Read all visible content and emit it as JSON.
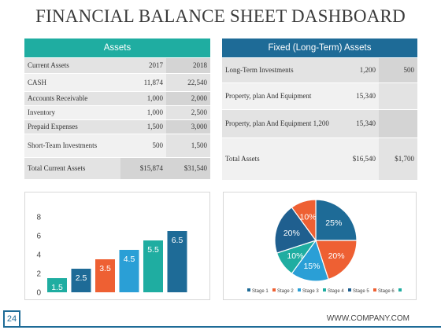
{
  "title": "FINANCIAL BALANCE SHEET DASHBOARD",
  "assets": {
    "header": "Assets",
    "col_labels": [
      "Current Assets",
      "2017",
      "2018"
    ],
    "rows": [
      {
        "label": "CASH",
        "v2017": "11,874",
        "v2018": "22,540"
      },
      {
        "label": "Accounts Receivable",
        "v2017": "1,000",
        "v2018": "2,000"
      },
      {
        "label": "Inventory",
        "v2017": "1,000",
        "v2018": "2,500"
      },
      {
        "label": "Prepaid Expenses",
        "v2017": "1,500",
        "v2018": "3,000"
      },
      {
        "label": "Short-Team Investments",
        "v2017": "500",
        "v2018": "1,500"
      },
      {
        "label": "Total Current Assets",
        "v2017": "$15,874",
        "v2018": "$31,540"
      }
    ]
  },
  "fixed_assets": {
    "header": "Fixed (Long-Term) Assets",
    "rows": [
      {
        "label": "Long-Term Investments",
        "v1": "1,200",
        "v2": "500"
      },
      {
        "label": "Property, plan And Equipment",
        "v1": "15,340",
        "v2": ""
      },
      {
        "label": "Property, plan And Equipment 1,200",
        "v1": "15,340",
        "v2": ""
      },
      {
        "label": "Total Assets",
        "v1": "$16,540",
        "v2": "$1,700"
      }
    ]
  },
  "chart_data": [
    {
      "type": "bar",
      "categories": [
        "",
        "",
        "",
        "",
        "",
        ""
      ],
      "values": [
        1.5,
        2.5,
        3.5,
        4.5,
        5.5,
        6.5
      ],
      "data_labels": [
        "1.5",
        "2.5",
        "3.5",
        "4.5",
        "5.5",
        "6.5"
      ],
      "colors": [
        "#1fada1",
        "#1e6b97",
        "#ee6033",
        "#2a9fd6",
        "#1fada1",
        "#1e6b97"
      ],
      "yticks": [
        "0",
        "2",
        "4",
        "6",
        "8"
      ],
      "ylim": [
        0,
        8
      ],
      "grid": false
    },
    {
      "type": "pie",
      "labels": [
        "Stage 1",
        "Stage 2",
        "Stage 3",
        "Stage 4",
        "Stage 5",
        "Stage 6"
      ],
      "values": [
        25,
        20,
        15,
        10,
        20,
        10
      ],
      "data_labels": [
        "25%",
        "20%",
        "15%",
        "10%",
        "20%",
        "10%"
      ],
      "colors": [
        "#1e6b97",
        "#ee6033",
        "#2a9fd6",
        "#1fada1",
        "#1f5f8f",
        "#ee6033"
      ],
      "legend_extra_color": "#1fada1",
      "legend": "bottom"
    }
  ],
  "footer": {
    "page_number": "24",
    "company": "WWW.COMPANY.COM"
  }
}
